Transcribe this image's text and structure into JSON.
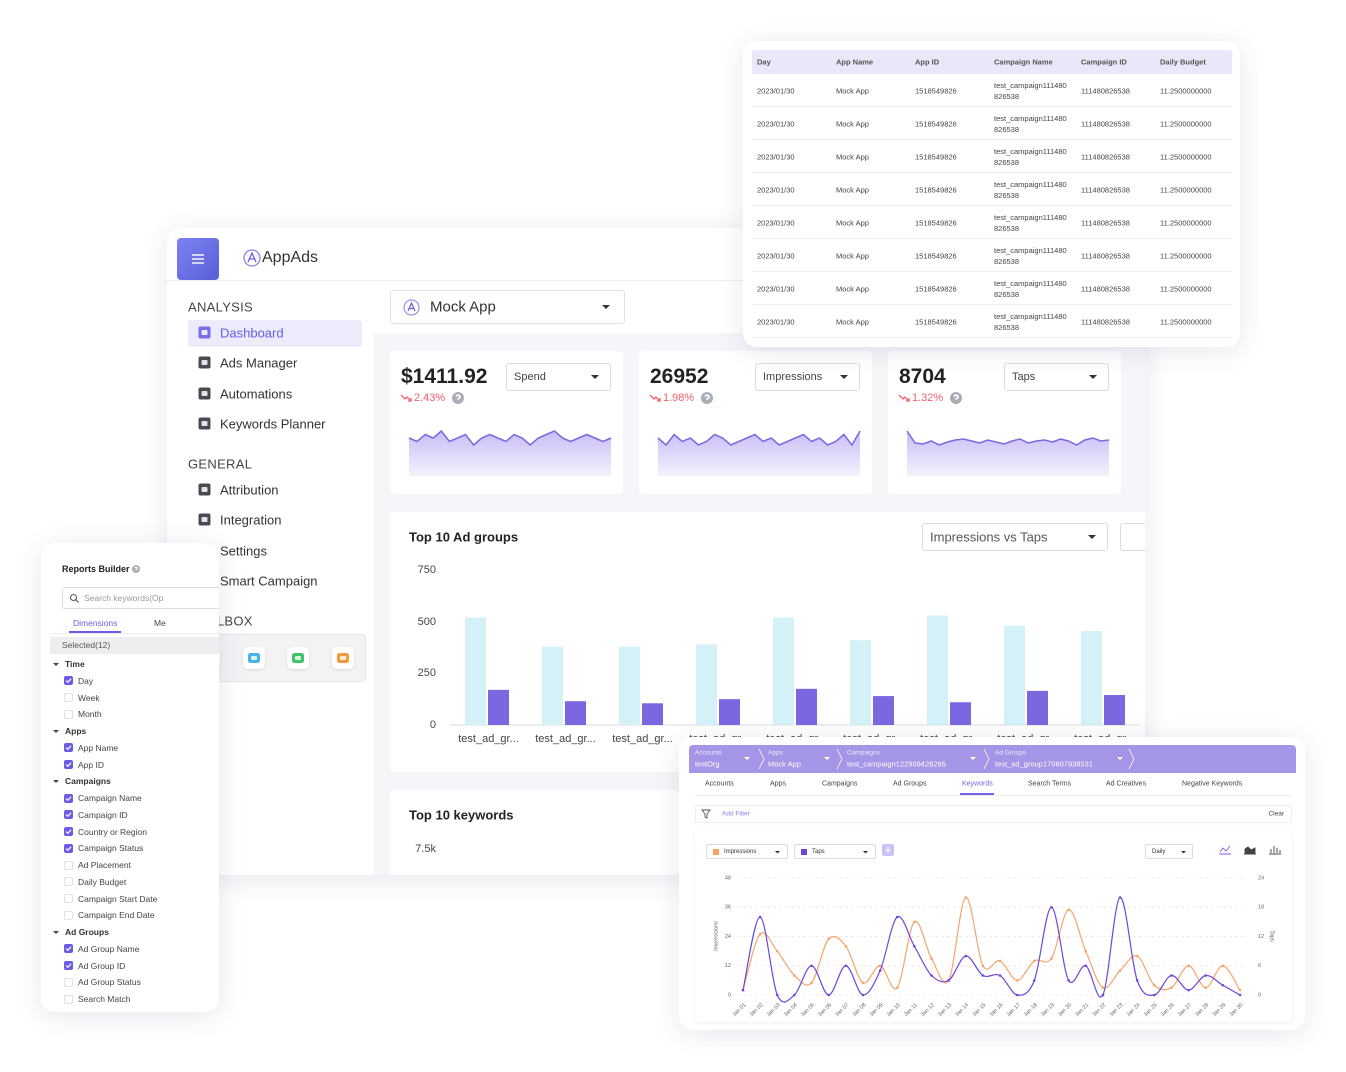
{
  "dashboard": {
    "brand": "AppAds",
    "nav": [
      {
        "heading": "ANALYSIS",
        "items": [
          "Dashboard",
          "Ads Manager",
          "Automations",
          "Keywords Planner"
        ],
        "active": "Dashboard"
      },
      {
        "heading": "GENERAL",
        "items": [
          "Attribution",
          "Integration",
          "Settings",
          "Smart Campaign"
        ]
      },
      {
        "heading": "TOOLBOX",
        "items": []
      }
    ],
    "app_select": "Mock App",
    "metrics": [
      {
        "value": "$1411.92",
        "metric": "Spend",
        "change": "2.43%",
        "trend": [
          55,
          54,
          56,
          55,
          57,
          54,
          55,
          56,
          53,
          55,
          56,
          55,
          54,
          56,
          55,
          53,
          55,
          56,
          57,
          55,
          54,
          55,
          56,
          55,
          54,
          55
        ]
      },
      {
        "value": "26952",
        "metric": "Impressions",
        "change": "1.98%",
        "trend": [
          52,
          50,
          53,
          51,
          52,
          50,
          51,
          53,
          52,
          50,
          51,
          52,
          53,
          51,
          52,
          50,
          51,
          52,
          53,
          51,
          52,
          50,
          51,
          53,
          50,
          54
        ]
      },
      {
        "value": "8704",
        "metric": "Taps",
        "change": "1.32%",
        "trend": [
          70,
          58,
          57,
          60,
          56,
          59,
          61,
          62,
          60,
          58,
          61,
          59,
          57,
          60,
          62,
          58,
          60,
          61,
          59,
          62,
          60,
          56,
          61,
          63,
          60,
          61
        ]
      }
    ],
    "ad_groups_chart": {
      "type": "bar",
      "title": "Top 10 Ad groups",
      "selector": "Impressions vs Taps",
      "categories": [
        "test_ad_gr...",
        "test_ad_gr...",
        "test_ad_gr...",
        "test_ad_gr...",
        "test_ad_gr...",
        "test_ad_gr...",
        "test_ad_gr...",
        "test_ad_gr...",
        "test_ad_gr..."
      ],
      "series": [
        {
          "color": "#d4f1f8",
          "values": [
            520,
            380,
            380,
            390,
            520,
            410,
            530,
            480,
            455
          ]
        },
        {
          "color": "#7b68e0",
          "values": [
            170,
            115,
            105,
            125,
            175,
            140,
            110,
            165,
            145
          ]
        }
      ],
      "ylim": [
        0,
        750
      ],
      "yticks": [
        0,
        250,
        500,
        750
      ],
      "grid": false
    },
    "keywords_chart": {
      "title": "Top 10 keywords",
      "yticks": [
        {
          "value": 7500,
          "label": "7.5k"
        }
      ]
    }
  },
  "table": {
    "columns": [
      "Day",
      "App Name",
      "App ID",
      "Campaign Name",
      "Campaign ID",
      "Daily Budget"
    ],
    "rows": [
      [
        "2023/01/30",
        "Mock App",
        "1518549826",
        "test_campaign111480826538",
        "111480826538",
        "11.2500000000"
      ],
      [
        "2023/01/30",
        "Mock App",
        "1518549826",
        "test_campaign111480826538",
        "111480826538",
        "11.2500000000"
      ],
      [
        "2023/01/30",
        "Mock App",
        "1518549826",
        "test_campaign111480826538",
        "111480826538",
        "11.2500000000"
      ],
      [
        "2023/01/30",
        "Mock App",
        "1518549826",
        "test_campaign111480826538",
        "111480826538",
        "11.2500000000"
      ],
      [
        "2023/01/30",
        "Mock App",
        "1518549826",
        "test_campaign111480826538",
        "111480826538",
        "11.2500000000"
      ],
      [
        "2023/01/30",
        "Mock App",
        "1518549826",
        "test_campaign111480826538",
        "111480826538",
        "11.2500000000"
      ],
      [
        "2023/01/30",
        "Mock App",
        "1518549826",
        "test_campaign111480826538",
        "111480826538",
        "11.2500000000"
      ],
      [
        "2023/01/30",
        "Mock App",
        "1518549826",
        "test_campaign111480826538",
        "111480826538",
        "11.2500000000"
      ]
    ]
  },
  "reports_builder": {
    "title": "Reports Builder",
    "search_placeholder": "Search keywords(Op",
    "tabs": [
      "Dimensions",
      "Me"
    ],
    "active_tab": "Dimensions",
    "selected": "Selected(12)",
    "groups": [
      {
        "name": "Time",
        "fields": [
          {
            "label": "Day",
            "checked": true
          },
          {
            "label": "Week",
            "checked": false
          },
          {
            "label": "Month",
            "checked": false
          }
        ]
      },
      {
        "name": "Apps",
        "fields": [
          {
            "label": "App Name",
            "checked": true
          },
          {
            "label": "App ID",
            "checked": true
          }
        ]
      },
      {
        "name": "Campaigns",
        "fields": [
          {
            "label": "Campaign Name",
            "checked": true
          },
          {
            "label": "Campaign ID",
            "checked": true
          },
          {
            "label": "Country or Region",
            "checked": true
          },
          {
            "label": "Campaign Status",
            "checked": true
          },
          {
            "label": "Ad Placement",
            "checked": false
          },
          {
            "label": "Daily Budget",
            "checked": false
          },
          {
            "label": "Campaign Start Date",
            "checked": false
          },
          {
            "label": "Campaign End Date",
            "checked": false
          }
        ]
      },
      {
        "name": "Ad Groups",
        "fields": [
          {
            "label": "Ad Group Name",
            "checked": true
          },
          {
            "label": "Ad Group ID",
            "checked": true
          },
          {
            "label": "Ad Group Status",
            "checked": false
          },
          {
            "label": "Search Match",
            "checked": false
          }
        ]
      }
    ]
  },
  "keywords_panel": {
    "breadcrumbs": [
      {
        "level": "Accounts",
        "value": "testOrg"
      },
      {
        "level": "Apps",
        "value": "Mock App"
      },
      {
        "level": "Campaigns",
        "value": "test_campaign122909428265"
      },
      {
        "level": "Ad Groups",
        "value": "test_ad_group170607938531"
      }
    ],
    "tabs": [
      "Accounts",
      "Apps",
      "Campaigns",
      "Ad Groups",
      "Keywords",
      "Search Terms",
      "Ad Creatives",
      "Negative Keywords"
    ],
    "active_tab": "Keywords",
    "filter": "Add Filter",
    "clear": "Clear",
    "interval": "Daily",
    "chart": {
      "type": "line",
      "x": [
        "Jan 01",
        "Jan 02",
        "Jan 03",
        "Jan 04",
        "Jan 05",
        "Jan 06",
        "Jan 07",
        "Jan 08",
        "Jan 09",
        "Jan 10",
        "Jan 11",
        "Jan 12",
        "Jan 13",
        "Jan 14",
        "Jan 15",
        "Jan 16",
        "Jan 17",
        "Jan 18",
        "Jan 19",
        "Jan 20",
        "Jan 21",
        "Jan 22",
        "Jan 23",
        "Jan 24",
        "Jan 25",
        "Jan 26",
        "Jan 27",
        "Jan 28",
        "Jan 29",
        "Jan 30"
      ],
      "series": [
        {
          "name": "Impressions",
          "color": "#f7a46a",
          "values": [
            2,
            25,
            18,
            8,
            5,
            23,
            20,
            5,
            12,
            3,
            30,
            15,
            6,
            40,
            12,
            14,
            6,
            14,
            15,
            35,
            18,
            3,
            10,
            16,
            4,
            3,
            12,
            3,
            12,
            2
          ]
        },
        {
          "name": "Taps",
          "color": "#6c47d9",
          "axis": "y2",
          "values": [
            1,
            16,
            0,
            0,
            6,
            0,
            6,
            0,
            5,
            16,
            10,
            4,
            3,
            8,
            4,
            4,
            0,
            3,
            18,
            3,
            6,
            0,
            20,
            3,
            0,
            4,
            1,
            4,
            2,
            0
          ]
        }
      ],
      "ylabel": "Impressions",
      "y2label": "Taps",
      "ylim": [
        0,
        48
      ],
      "yticks": [
        0,
        12,
        24,
        36,
        48
      ],
      "y2lim": [
        0,
        24
      ],
      "y2ticks": [
        0,
        6,
        12,
        18,
        24
      ],
      "grid": true
    }
  }
}
